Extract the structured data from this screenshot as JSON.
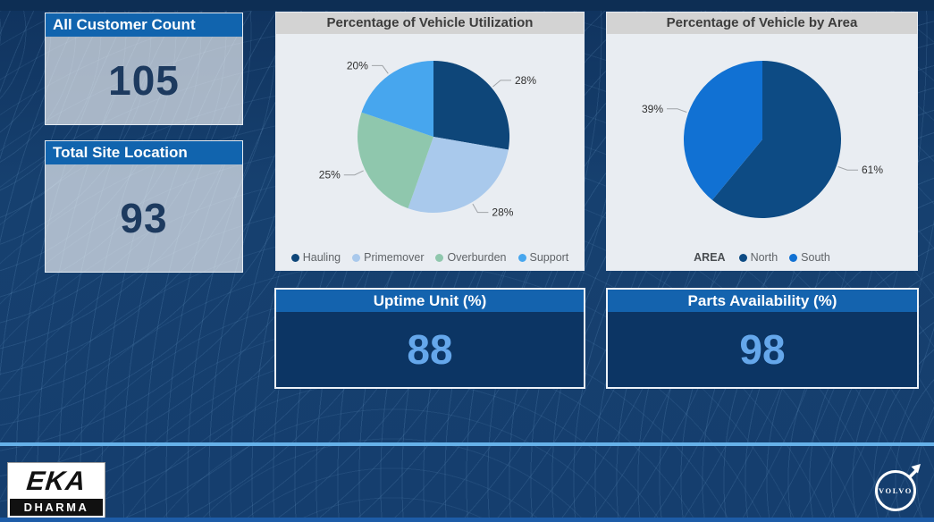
{
  "dashboard": {
    "stat_cards": [
      {
        "title": "All Customer Count",
        "value": "105"
      },
      {
        "title": "Total Site Location",
        "value": "93"
      }
    ],
    "kpi_cards": [
      {
        "title": "Uptime Unit (%)",
        "value": "88"
      },
      {
        "title": "Parts Availability (%)",
        "value": "98"
      }
    ],
    "footer": {
      "logo_left_line1": "EKA",
      "logo_left_line2": "DHARMA",
      "logo_right_text": "VOLVO"
    },
    "colors": {
      "background": "#153e6e",
      "accent_line": "#66b1e9",
      "card_header_blue": "#1164ae",
      "kpi_header_blue": "#1463ae",
      "kpi_body_navy": "#0c3564",
      "kpi_value_blue": "#65a7eb",
      "stat_value_navy": "#1d3a5f",
      "bottom_strip_blue": "#1d5ca8"
    }
  },
  "chart_data": [
    {
      "type": "pie",
      "title": "Percentage of Vehicle Utilization",
      "categories": [
        "Hauling",
        "Primemover",
        "Overburden",
        "Support"
      ],
      "values": [
        28,
        28,
        25,
        20
      ],
      "labels": [
        "28%",
        "28%",
        "25%",
        "20%"
      ],
      "colors": [
        "#0e4679",
        "#a9c9ec",
        "#8fc7ad",
        "#47a6ee"
      ],
      "unit": "%",
      "legend_position": "bottom",
      "start_angle_deg": 0,
      "direction": "clockwise"
    },
    {
      "type": "pie",
      "title": "Percentage of Vehicle by Area",
      "legend_title": "AREA",
      "categories": [
        "North",
        "South"
      ],
      "values": [
        61,
        39
      ],
      "labels": [
        "61%",
        "39%"
      ],
      "colors": [
        "#0d4b84",
        "#1171d3"
      ],
      "unit": "%",
      "legend_position": "bottom",
      "start_angle_deg": 0,
      "direction": "clockwise"
    }
  ]
}
